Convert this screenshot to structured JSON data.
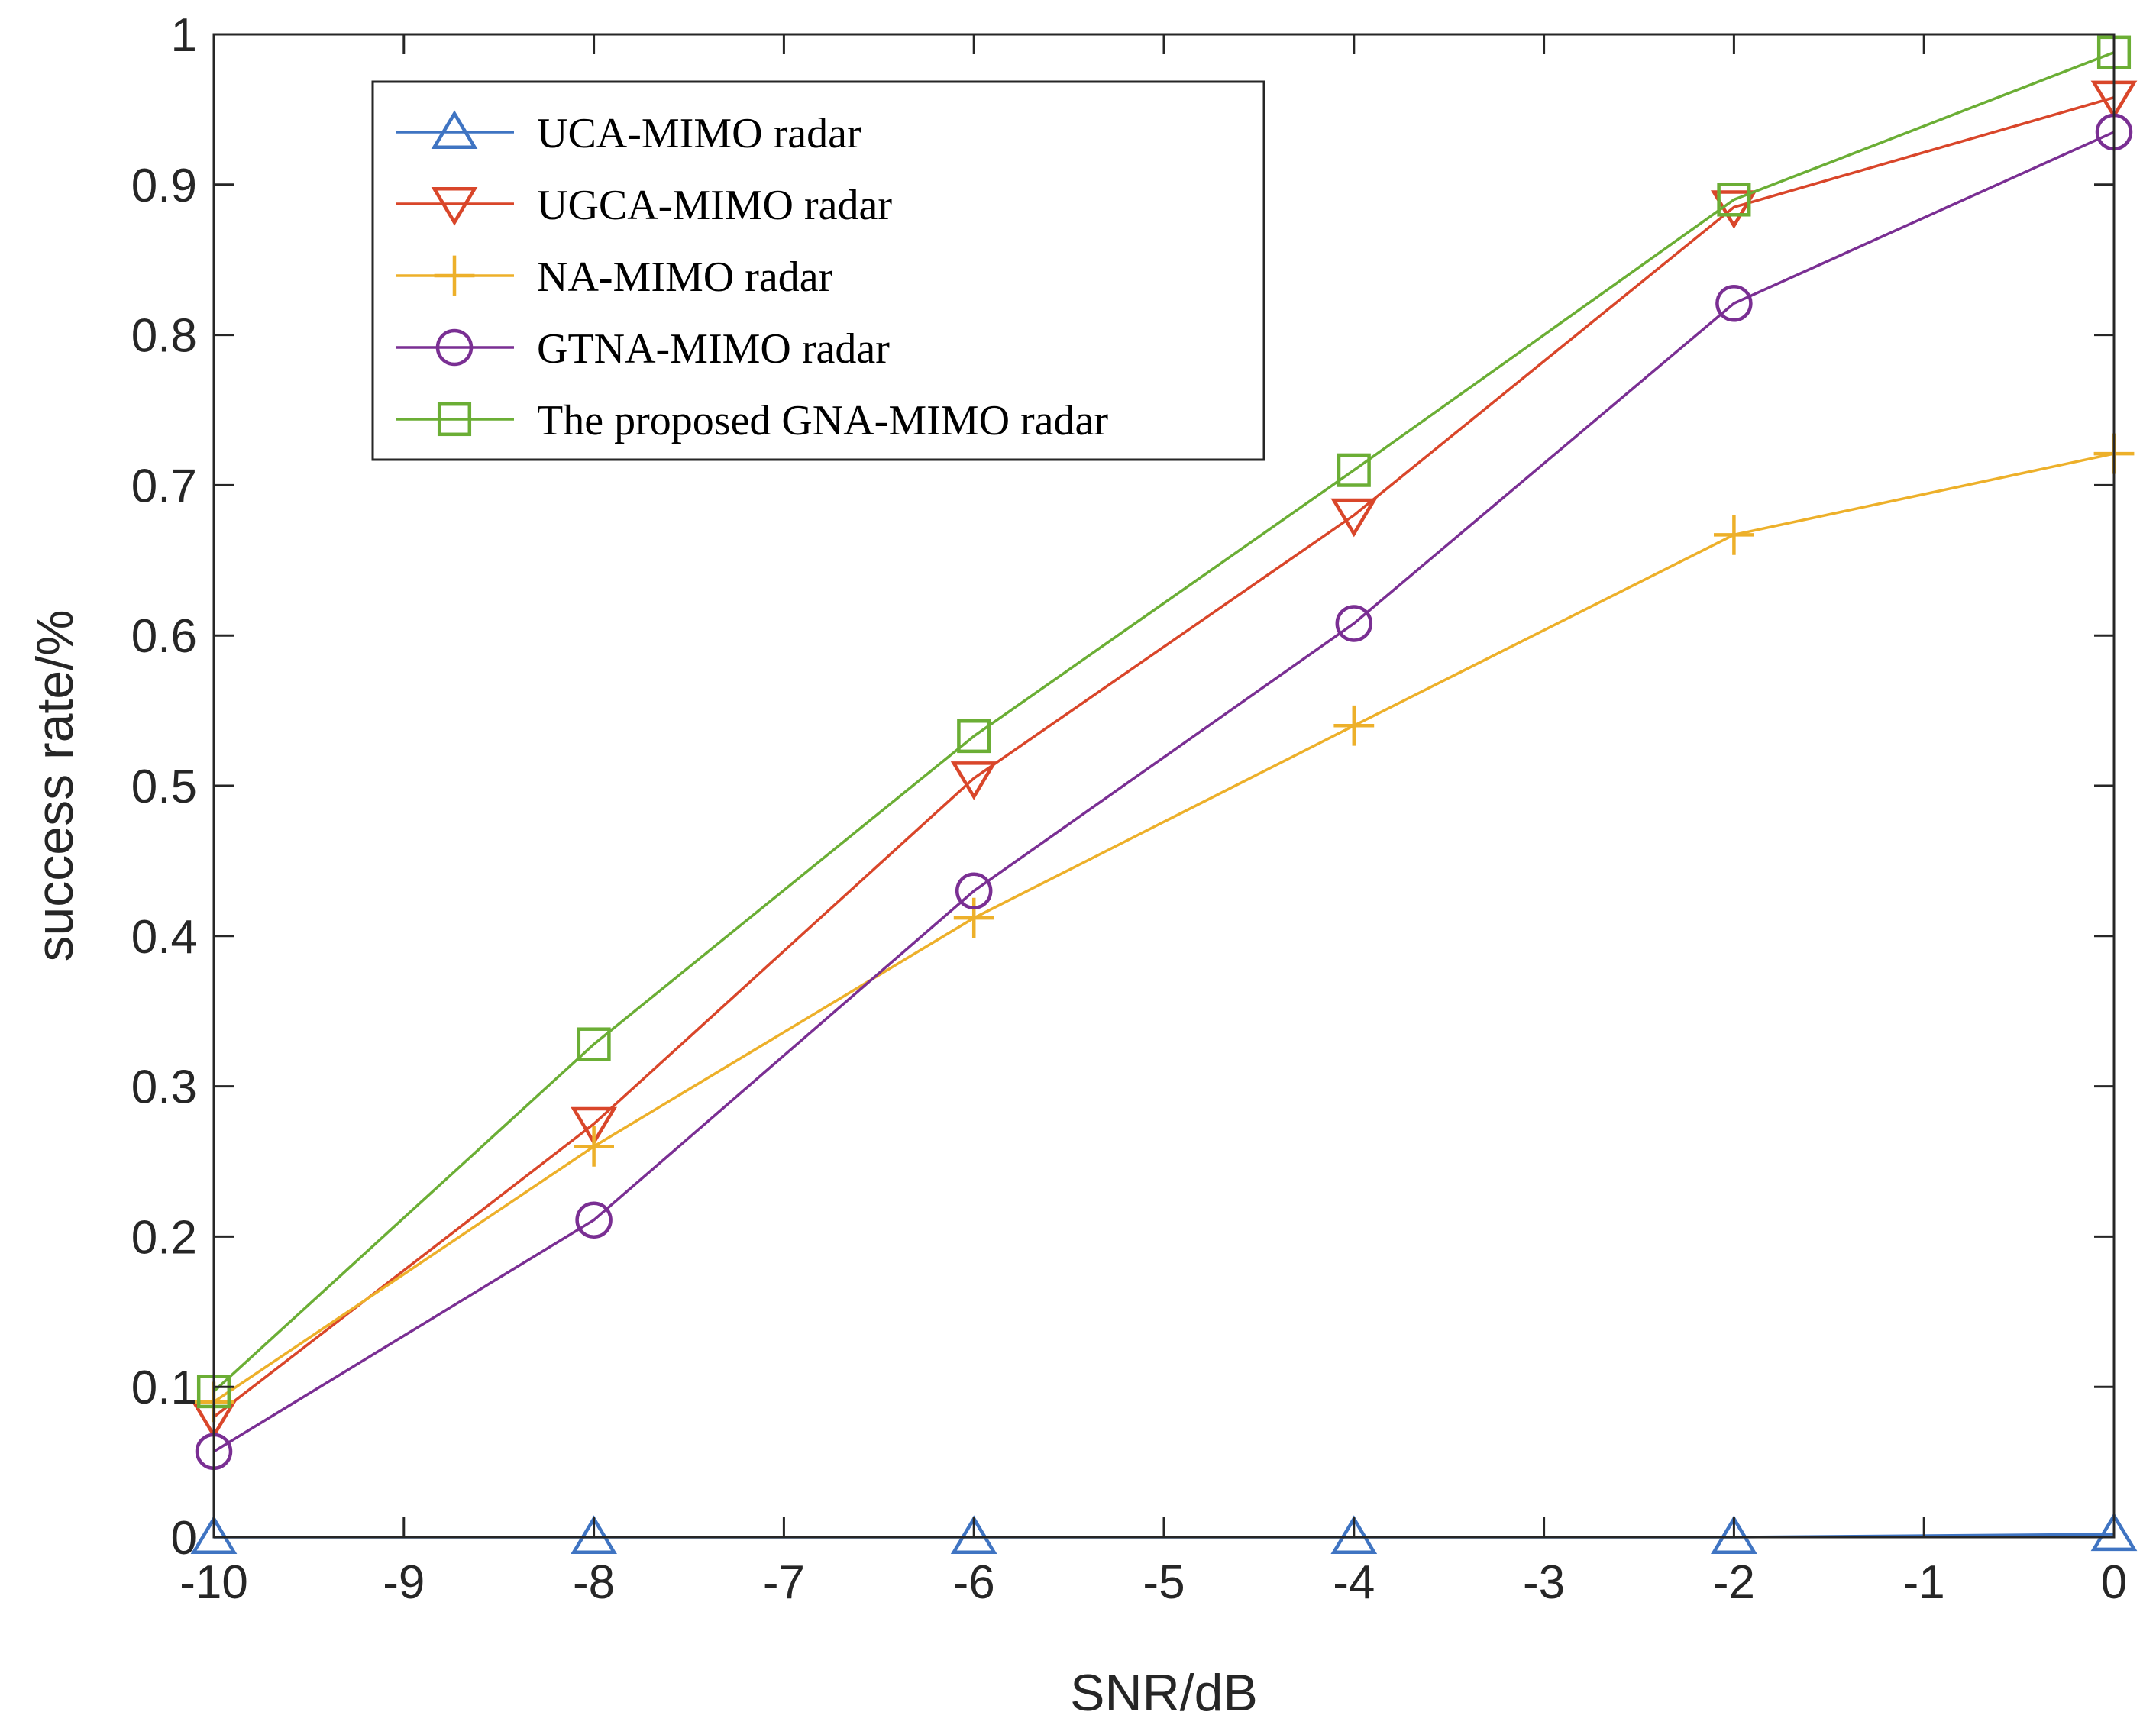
{
  "chart_data": {
    "type": "line",
    "title": "",
    "xlabel": "SNR/dB",
    "ylabel": "success rate/%",
    "xlim": [
      -10,
      0
    ],
    "ylim": [
      0,
      1
    ],
    "xticks": [
      "-10",
      "-9",
      "-8",
      "-7",
      "-6",
      "-5",
      "-4",
      "-3",
      "-2",
      "-1",
      "0"
    ],
    "yticks": [
      "0",
      "0.1",
      "0.2",
      "0.3",
      "0.4",
      "0.5",
      "0.6",
      "0.7",
      "0.8",
      "0.9",
      "1"
    ],
    "x": [
      -10,
      -8,
      -6,
      -4,
      -2,
      0
    ],
    "grid": false,
    "legend_position": "top-left",
    "series": [
      {
        "name": "UCA-MIMO radar",
        "color": "#3f74c2",
        "marker": "triangle-up",
        "values": [
          0,
          0,
          0,
          0,
          0,
          0.002
        ]
      },
      {
        "name": "UGCA-MIMO radar",
        "color": "#d9462a",
        "marker": "triangle-down",
        "values": [
          0.08,
          0.275,
          0.505,
          0.68,
          0.885,
          0.958
        ]
      },
      {
        "name": "NA-MIMO radar",
        "color": "#edb02a",
        "marker": "plus",
        "values": [
          0.09,
          0.26,
          0.412,
          0.54,
          0.667,
          0.721
        ]
      },
      {
        "name": "GTNA-MIMO radar",
        "color": "#7a2f93",
        "marker": "circle",
        "values": [
          0.057,
          0.211,
          0.43,
          0.608,
          0.821,
          0.935
        ]
      },
      {
        "name": "The proposed GNA-MIMO radar",
        "color": "#6bae35",
        "marker": "square",
        "values": [
          0.097,
          0.328,
          0.533,
          0.71,
          0.89,
          0.988
        ]
      }
    ]
  }
}
